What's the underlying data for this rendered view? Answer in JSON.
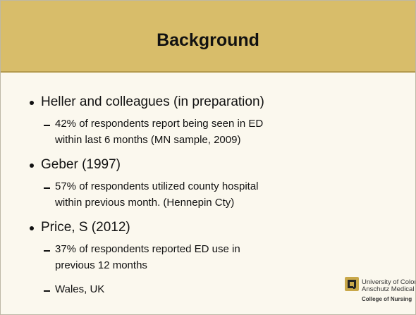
{
  "header": {
    "title": "Background"
  },
  "bullets": [
    {
      "text": "Heller and colleagues (in preparation)",
      "subs": [
        {
          "lines": [
            "42% of respondents report being seen in ED",
            "within last 6 months (MN sample, 2009)"
          ]
        }
      ]
    },
    {
      "text": "Geber  (1997)",
      "subs": [
        {
          "lines": [
            "57% of respondents utilized county hospital",
            "within previous month. (Hennepin Cty)"
          ]
        }
      ]
    },
    {
      "text": "Price, S (2012)",
      "subs": [
        {
          "lines": [
            "37% of respondents reported ED use in",
            "previous 12 months"
          ]
        },
        {
          "lines": [
            "Wales, UK"
          ]
        }
      ]
    }
  ],
  "logo": {
    "line1": "University of Colorado",
    "line2": "Anschutz Medical Campus",
    "line3": "College of Nursing"
  }
}
